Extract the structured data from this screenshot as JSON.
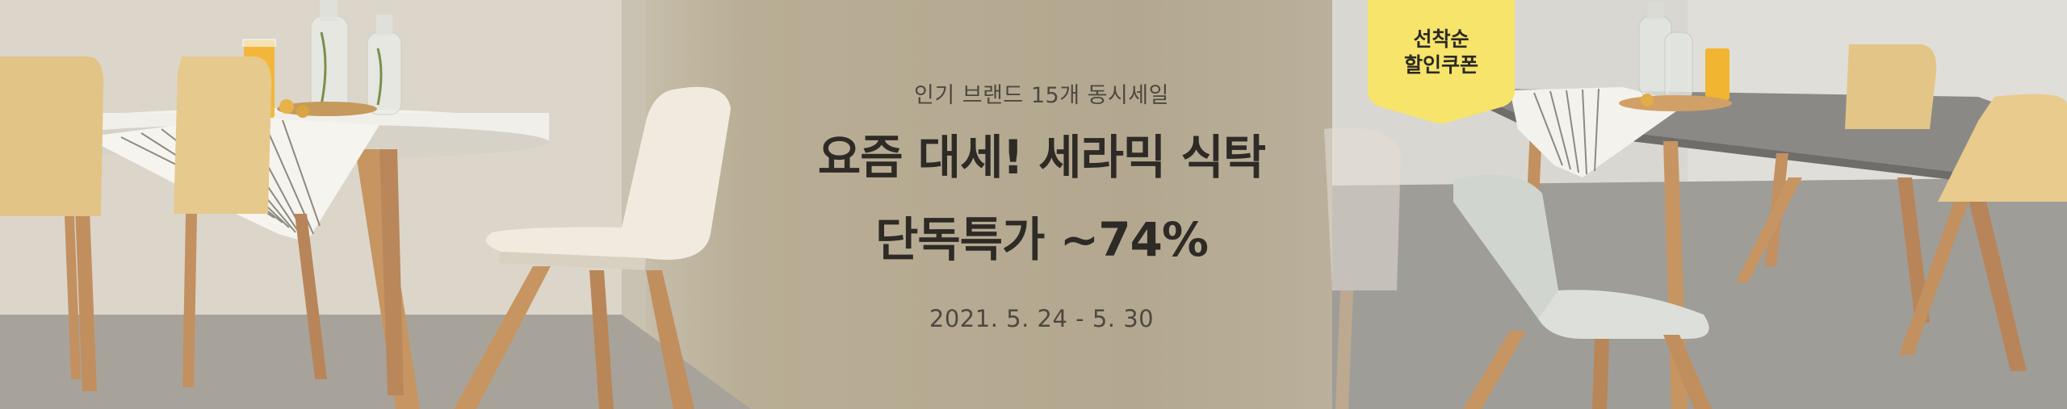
{
  "banner": {
    "subtitle": "인기 브랜드 15개 동시세일",
    "headline_line1": "요즘 대세! 세라믹 식탁",
    "headline_line2": "단독특가 ~74%",
    "period": "2021. 5. 24 - 5. 30"
  },
  "badge": {
    "line1": "선착순",
    "line2": "할인쿠폰",
    "color": "#f7e46a"
  },
  "colors": {
    "text_dark": "#2e2a26",
    "text_mid": "#4e4840",
    "background": "#b5ab94"
  }
}
